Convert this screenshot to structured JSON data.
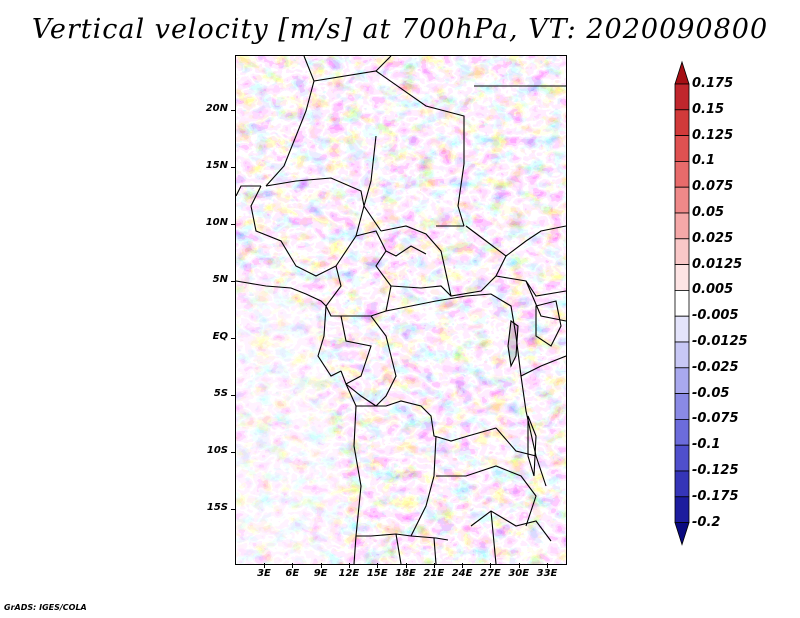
{
  "title": "Vertical velocity [m/s] at 700hPa, VT: 2020090800",
  "footer": "GrADS: IGES/COLA",
  "axes": {
    "lat_labels": [
      "20N",
      "15N",
      "10N",
      "5N",
      "EQ",
      "5S",
      "10S",
      "15S"
    ],
    "lon_labels": [
      "3E",
      "6E",
      "9E",
      "12E",
      "15E",
      "18E",
      "21E",
      "24E",
      "27E",
      "30E",
      "33E"
    ]
  },
  "chart_data": {
    "type": "heatmap",
    "title": "Vertical velocity [m/s] at 700hPa, VT: 2020090800",
    "variable": "Vertical velocity",
    "units": "m/s",
    "level": "700hPa",
    "valid_time": "2020090800",
    "xlabel": "",
    "ylabel": "",
    "colorbar": {
      "labels": [
        "0.175",
        "0.15",
        "0.125",
        "0.1",
        "0.075",
        "0.05",
        "0.025",
        "0.0125",
        "0.005",
        "-0.005",
        "-0.0125",
        "-0.025",
        "-0.05",
        "-0.075",
        "-0.1",
        "-0.125",
        "-0.175",
        "-0.2"
      ],
      "colors": [
        "#a50f15",
        "#c0262d",
        "#d13a3a",
        "#df5151",
        "#e86b6b",
        "#ef8989",
        "#f5a8a8",
        "#f9c8c8",
        "#fde4e4",
        "#ffffff",
        "#e4e4fb",
        "#c8c8f5",
        "#a9a9ee",
        "#8a8ae5",
        "#6c6cdb",
        "#4f4fcc",
        "#3535b8",
        "#1c1c9e",
        "#0a0a80"
      ]
    }
  }
}
